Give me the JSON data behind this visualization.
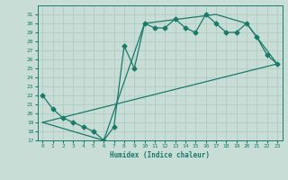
{
  "xlabel": "Humidex (Indice chaleur)",
  "xlim": [
    -0.5,
    23.5
  ],
  "ylim": [
    17,
    32
  ],
  "yticks": [
    17,
    18,
    19,
    20,
    21,
    22,
    23,
    24,
    25,
    26,
    27,
    28,
    29,
    30,
    31
  ],
  "xticks": [
    0,
    1,
    2,
    3,
    4,
    5,
    6,
    7,
    8,
    9,
    10,
    11,
    12,
    13,
    14,
    15,
    16,
    17,
    18,
    19,
    20,
    21,
    22,
    23
  ],
  "bg_color": "#c8ddd6",
  "line_color": "#1a7a6a",
  "grid_color": "#b0ccc4",
  "line1_x": [
    0,
    1,
    2,
    3,
    4,
    5,
    6,
    7,
    8,
    9,
    10,
    11,
    12,
    13,
    14,
    15,
    16,
    17,
    18,
    19,
    20,
    21,
    22,
    23
  ],
  "line1_y": [
    22,
    20.5,
    19.5,
    19,
    18.5,
    18,
    17,
    18.5,
    27.5,
    25,
    30,
    29.5,
    29.5,
    30.5,
    29.5,
    29,
    31,
    30,
    29,
    29,
    30,
    28.5,
    26.5,
    25.5
  ],
  "line2_x": [
    0,
    23
  ],
  "line2_y": [
    19,
    25.5
  ],
  "line3_x": [
    0,
    6,
    10,
    17,
    20,
    23
  ],
  "line3_y": [
    19,
    17,
    30,
    31,
    30,
    25.5
  ],
  "marker_size": 2.5,
  "linewidth": 0.9
}
